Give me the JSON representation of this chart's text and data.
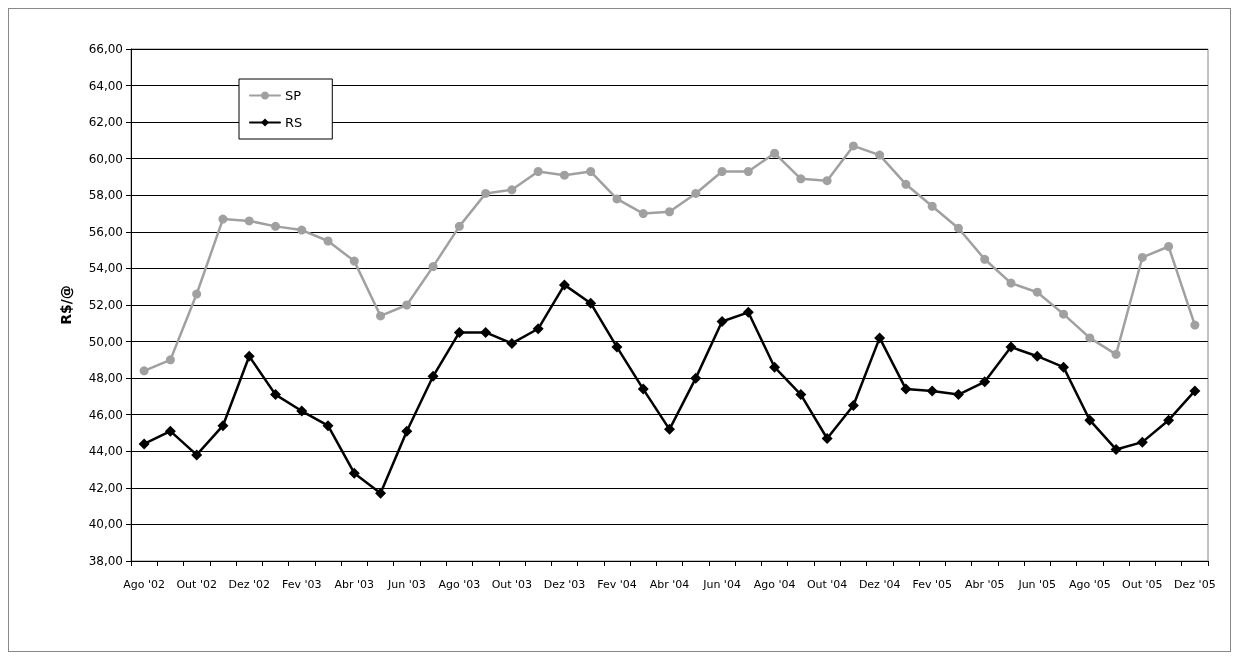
{
  "chart_data": {
    "type": "line",
    "ylabel": "R$/@",
    "categories": [
      "Ago '02",
      null,
      "Out '02",
      null,
      "Dez '02",
      null,
      "Fev '03",
      null,
      "Abr '03",
      null,
      "Jun '03",
      null,
      "Ago '03",
      null,
      "Out '03",
      null,
      "Dez '03",
      null,
      "Fev '04",
      null,
      "Abr '04",
      null,
      "Jun '04",
      null,
      "Ago '04",
      null,
      "Out '04",
      null,
      "Dez '04",
      null,
      "Fev '05",
      null,
      "Abr '05",
      null,
      "Jun '05",
      null,
      "Ago '05",
      null,
      "Out '05",
      null,
      "Dez '05"
    ],
    "series": [
      {
        "name": "SP",
        "color": "#a0a0a0",
        "marker": "circle",
        "values": [
          48.4,
          49.0,
          52.6,
          56.7,
          56.6,
          56.3,
          56.1,
          55.5,
          54.4,
          51.4,
          52.0,
          54.1,
          56.3,
          58.1,
          58.3,
          59.3,
          59.1,
          59.3,
          57.8,
          57.0,
          57.1,
          58.1,
          59.3,
          59.3,
          60.3,
          58.9,
          58.8,
          60.7,
          60.2,
          58.6,
          57.4,
          56.2,
          54.5,
          53.2,
          52.7,
          51.5,
          50.2,
          49.3,
          54.6,
          55.2,
          50.9
        ]
      },
      {
        "name": "RS",
        "color": "#000000",
        "marker": "diamond",
        "values": [
          44.4,
          45.1,
          43.8,
          45.4,
          49.2,
          47.1,
          46.2,
          45.4,
          42.8,
          41.7,
          45.1,
          48.1,
          50.5,
          50.5,
          49.9,
          50.7,
          53.1,
          52.1,
          49.7,
          47.4,
          45.2,
          48.0,
          51.1,
          51.6,
          48.6,
          47.1,
          44.7,
          46.5,
          50.2,
          47.4,
          47.3,
          47.1,
          47.8,
          49.7,
          49.2,
          48.6,
          45.7,
          44.1,
          44.5,
          45.7,
          47.3
        ]
      }
    ],
    "ylim": [
      38,
      66
    ],
    "yticks": [
      {
        "value": 38,
        "label": "38,00"
      },
      {
        "value": 40,
        "label": "40,00"
      },
      {
        "value": 42,
        "label": "42,00"
      },
      {
        "value": 44,
        "label": "44,00"
      },
      {
        "value": 46,
        "label": "46,00"
      },
      {
        "value": 48,
        "label": "48,00"
      },
      {
        "value": 50,
        "label": "50,00"
      },
      {
        "value": 52,
        "label": "52,00"
      },
      {
        "value": 54,
        "label": "54,00"
      },
      {
        "value": 56,
        "label": "56,00"
      },
      {
        "value": 58,
        "label": "58,00"
      },
      {
        "value": 60,
        "label": "60,00"
      },
      {
        "value": 62,
        "label": "62,00"
      },
      {
        "value": 64,
        "label": "64,00"
      },
      {
        "value": 66,
        "label": "66,00"
      }
    ],
    "grid": "y",
    "legend": "top left",
    "line_style": "solid"
  }
}
